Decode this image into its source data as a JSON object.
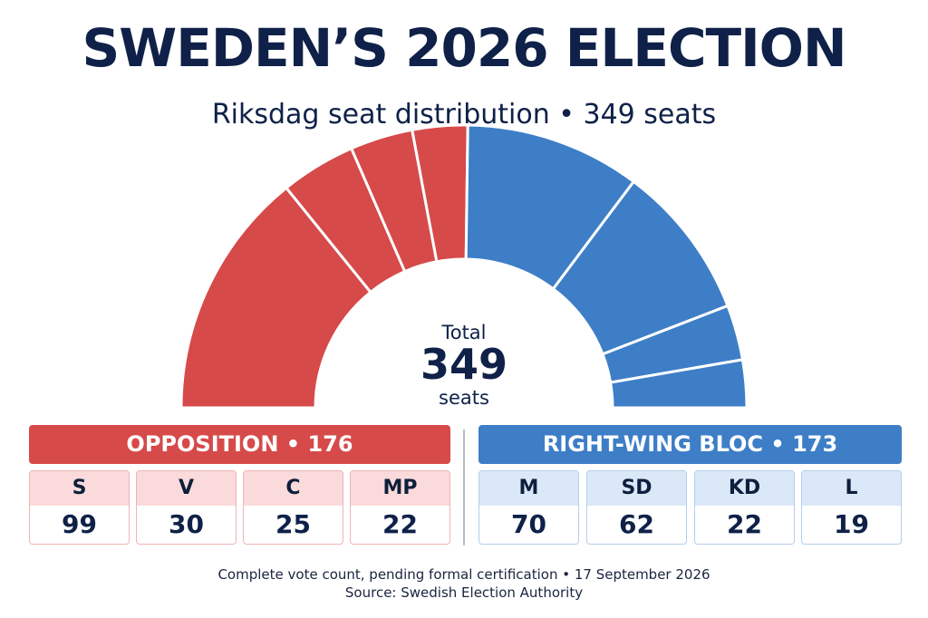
{
  "title": "SWEDEN’S 2026 ELECTION",
  "subtitle": "Riksdag seat distribution • 349 seats",
  "center": {
    "top": "Total",
    "value": "349",
    "bottom": "seats"
  },
  "colors": {
    "opposition": "#d64a4a",
    "right_bloc": "#3d7ec7",
    "title": "#0f2148"
  },
  "blocs": [
    {
      "header": "OPPOSITION • 176",
      "parties": [
        {
          "abbr": "S",
          "seats": "99"
        },
        {
          "abbr": "V",
          "seats": "30"
        },
        {
          "abbr": "C",
          "seats": "25"
        },
        {
          "abbr": "MP",
          "seats": "22"
        }
      ]
    },
    {
      "header": "RIGHT-WING BLOC • 173",
      "parties": [
        {
          "abbr": "M",
          "seats": "70"
        },
        {
          "abbr": "SD",
          "seats": "62"
        },
        {
          "abbr": "KD",
          "seats": "22"
        },
        {
          "abbr": "L",
          "seats": "19"
        }
      ]
    }
  ],
  "footer": {
    "line1": "Complete vote count, pending formal certification • 17 September 2026",
    "line2": "Source: Swedish Election Authority"
  },
  "chart_data": {
    "type": "pie",
    "title": "Riksdag seat distribution • 349 seats",
    "categories": [
      "S",
      "V",
      "C",
      "MP",
      "M",
      "SD",
      "KD",
      "L"
    ],
    "values": [
      99,
      30,
      25,
      22,
      70,
      62,
      22,
      19
    ],
    "groups": [
      {
        "name": "OPPOSITION",
        "total": 176,
        "members": [
          "S",
          "V",
          "C",
          "MP"
        ]
      },
      {
        "name": "RIGHT-WING BLOC",
        "total": 173,
        "members": [
          "M",
          "SD",
          "KD",
          "L"
        ]
      }
    ],
    "total": 349
  }
}
